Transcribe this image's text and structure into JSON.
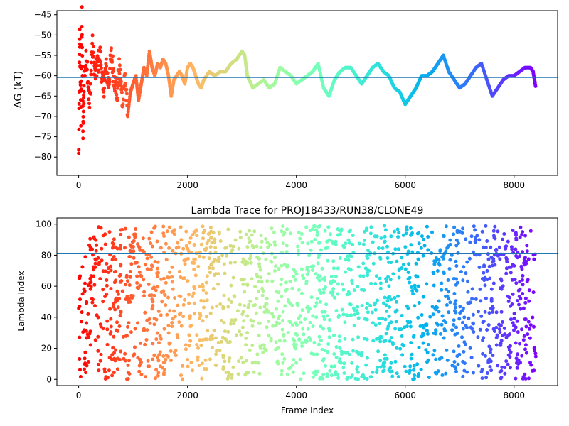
{
  "figure": {
    "background": "#ffffff"
  },
  "chart_data": [
    {
      "type": "scatter",
      "title": "",
      "xlabel": "",
      "ylabel": "ΔG (kT)",
      "xlim": [
        -400,
        8800
      ],
      "ylim": [
        -84.5,
        -44
      ],
      "xticks": [
        0,
        2000,
        4000,
        6000,
        8000
      ],
      "yticks": [
        -80,
        -75,
        -70,
        -65,
        -60,
        -55,
        -50,
        -45
      ],
      "hline": {
        "y": -60.4,
        "color": "#1f77b4"
      },
      "colormap": "rainbow",
      "grid": false,
      "series": [
        {
          "x": [
            0,
            20,
            40,
            60,
            80,
            100,
            150,
            200,
            250,
            300,
            350,
            400,
            450,
            500,
            550,
            600,
            650,
            700,
            750,
            800,
            850,
            900,
            950,
            1000,
            1050,
            1100,
            1150,
            1200,
            1250,
            1300,
            1350,
            1400,
            1450,
            1500,
            1550,
            1600,
            1650,
            1700,
            1750,
            1800,
            1850,
            1900,
            1950,
            2000,
            2050,
            2100,
            2150,
            2200,
            2250,
            2300,
            2400,
            2500,
            2600,
            2700,
            2800,
            2900,
            3000,
            3050,
            3100,
            3200,
            3300,
            3400,
            3500,
            3600,
            3700,
            3800,
            3900,
            4000,
            4100,
            4200,
            4300,
            4400,
            4500,
            4600,
            4700,
            4800,
            4900,
            5000,
            5100,
            5200,
            5300,
            5400,
            5500,
            5600,
            5700,
            5800,
            5900,
            6000,
            6050,
            6100,
            6200,
            6300,
            6400,
            6500,
            6600,
            6700,
            6800,
            6900,
            7000,
            7100,
            7200,
            7300,
            7400,
            7500,
            7600,
            7700,
            7800,
            7900,
            8000,
            8100,
            8200,
            8300,
            8350,
            8400
          ],
          "y": [
            -80,
            -50,
            -70,
            -45,
            -75,
            -60,
            -55,
            -68,
            -52,
            -60,
            -57,
            -55,
            -64,
            -58,
            -62,
            -55,
            -60,
            -65,
            -58,
            -66,
            -60,
            -70,
            -64,
            -62,
            -60,
            -66,
            -62,
            -58,
            -60,
            -54,
            -58,
            -60,
            -57,
            -58,
            -56,
            -57,
            -60,
            -65,
            -61,
            -60,
            -59,
            -60,
            -62,
            -58,
            -57,
            -58,
            -60,
            -62,
            -63,
            -61,
            -59,
            -60,
            -59,
            -59,
            -57,
            -56,
            -54,
            -55,
            -60,
            -63,
            -62,
            -61,
            -63,
            -62,
            -58,
            -59,
            -60,
            -62,
            -61,
            -60,
            -59,
            -57,
            -63,
            -65,
            -61,
            -59,
            -58,
            -58,
            -60,
            -62,
            -60,
            -58,
            -57,
            -59,
            -60,
            -63,
            -64,
            -67,
            -66,
            -65,
            -63,
            -60,
            -60,
            -59,
            -57,
            -55,
            -59,
            -61,
            -63,
            -62,
            -60,
            -58,
            -57,
            -61,
            -65,
            -63,
            -61,
            -60,
            -60,
            -59,
            -58,
            -58,
            -59,
            -63
          ]
        }
      ]
    },
    {
      "type": "scatter",
      "title": "Lambda Trace for PROJ18433/RUN38/CLONE49",
      "xlabel": "Frame Index",
      "ylabel": "Lambda Index",
      "xlim": [
        -400,
        8800
      ],
      "ylim": [
        -4,
        104
      ],
      "xticks": [
        0,
        2000,
        4000,
        6000,
        8000
      ],
      "yticks": [
        0,
        20,
        40,
        60,
        80,
        100
      ],
      "hline": {
        "y": 81,
        "color": "#1f77b4"
      },
      "colormap": "rainbow",
      "grid": false,
      "series": [
        {
          "x_range": [
            0,
            8400
          ],
          "y_range": [
            0,
            99
          ],
          "n_points": 1800
        }
      ]
    }
  ]
}
